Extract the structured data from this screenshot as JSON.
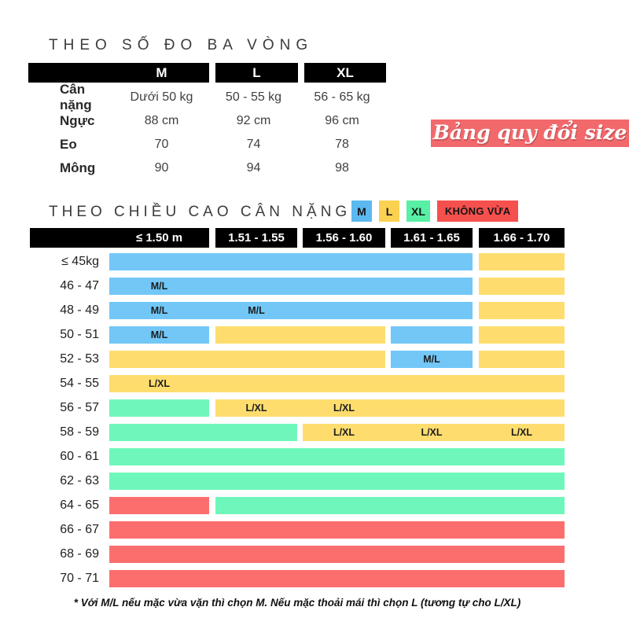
{
  "badge": {
    "label": "Bảng quy đổi size",
    "bg_color": "#f2696c"
  },
  "measurements": {
    "title": "THEO SỐ ĐO BA VÒNG",
    "size_columns": [
      "M",
      "L",
      "XL"
    ],
    "rows": [
      {
        "label": "Cân nặng",
        "values": [
          "Dưới 50 kg",
          "50 - 55 kg",
          "56 - 65 kg"
        ]
      },
      {
        "label": "Ngực",
        "values": [
          "88 cm",
          "92 cm",
          "96 cm"
        ]
      },
      {
        "label": "Eo",
        "values": [
          "70",
          "74",
          "78"
        ]
      },
      {
        "label": "Mông",
        "values": [
          "90",
          "94",
          "98"
        ]
      }
    ]
  },
  "height_weight": {
    "title": "THEO CHIỀU CAO CÂN NẶNG",
    "legend": [
      {
        "label": "M",
        "color": "#5bb9f0"
      },
      {
        "label": "L",
        "color": "#fbd152"
      },
      {
        "label": "XL",
        "color": "#57f0a5"
      },
      {
        "label": "KHÔNG VỪA",
        "color": "#f6504e"
      }
    ],
    "size_colors": {
      "M": "#72c7f7",
      "L": "#fedd6e",
      "XL": "#6ff7bb",
      "NONE": "#fc6e6e"
    },
    "height_columns": [
      "≤ 1.50 m",
      "1.51 - 1.55",
      "1.56 - 1.60",
      "1.61 - 1.65",
      "1.66 - 1.70"
    ],
    "weight_rows": [
      {
        "label": "≤ 45kg",
        "segments": [
          {
            "from": 1,
            "to": 4,
            "size": "M"
          },
          {
            "from": 5,
            "to": 5,
            "size": "L"
          }
        ]
      },
      {
        "label": "46 - 47",
        "segments": [
          {
            "from": 1,
            "to": 4,
            "size": "M",
            "labels": [
              {
                "col": 1,
                "text": "M/L"
              }
            ]
          },
          {
            "from": 5,
            "to": 5,
            "size": "L"
          }
        ]
      },
      {
        "label": "48 - 49",
        "segments": [
          {
            "from": 1,
            "to": 4,
            "size": "M",
            "labels": [
              {
                "col": 1,
                "text": "M/L"
              },
              {
                "col": 2,
                "text": "M/L"
              }
            ]
          },
          {
            "from": 5,
            "to": 5,
            "size": "L"
          }
        ]
      },
      {
        "label": "50 - 51",
        "segments": [
          {
            "from": 1,
            "to": 1,
            "size": "M",
            "labels": [
              {
                "col": 1,
                "text": "M/L"
              }
            ]
          },
          {
            "from": 2,
            "to": 3,
            "size": "L"
          },
          {
            "from": 4,
            "to": 4,
            "size": "M"
          },
          {
            "from": 5,
            "to": 5,
            "size": "L"
          }
        ]
      },
      {
        "label": "52 - 53",
        "segments": [
          {
            "from": 1,
            "to": 3,
            "size": "L"
          },
          {
            "from": 4,
            "to": 4,
            "size": "M",
            "labels": [
              {
                "col": 4,
                "text": "M/L"
              }
            ]
          },
          {
            "from": 5,
            "to": 5,
            "size": "L"
          }
        ]
      },
      {
        "label": "54 - 55",
        "segments": [
          {
            "from": 1,
            "to": 5,
            "size": "L",
            "labels": [
              {
                "col": 1,
                "text": "L/XL"
              }
            ]
          }
        ]
      },
      {
        "label": "56 - 57",
        "segments": [
          {
            "from": 1,
            "to": 1,
            "size": "XL"
          },
          {
            "from": 2,
            "to": 5,
            "size": "L",
            "labels": [
              {
                "col": 2,
                "text": "L/XL"
              },
              {
                "col": 3,
                "text": "L/XL"
              }
            ]
          }
        ]
      },
      {
        "label": "58 - 59",
        "segments": [
          {
            "from": 1,
            "to": 2,
            "size": "XL"
          },
          {
            "from": 3,
            "to": 5,
            "size": "L",
            "labels": [
              {
                "col": 3,
                "text": "L/XL"
              },
              {
                "col": 4,
                "text": "L/XL"
              },
              {
                "col": 5,
                "text": "L/XL"
              }
            ]
          }
        ]
      },
      {
        "label": "60 - 61",
        "segments": [
          {
            "from": 1,
            "to": 5,
            "size": "XL"
          }
        ]
      },
      {
        "label": "62 - 63",
        "segments": [
          {
            "from": 1,
            "to": 5,
            "size": "XL"
          }
        ]
      },
      {
        "label": "64 - 65",
        "segments": [
          {
            "from": 1,
            "to": 1,
            "size": "NONE"
          },
          {
            "from": 2,
            "to": 5,
            "size": "XL"
          }
        ]
      },
      {
        "label": "66 - 67",
        "segments": [
          {
            "from": 1,
            "to": 5,
            "size": "NONE"
          }
        ]
      },
      {
        "label": "68 - 69",
        "segments": [
          {
            "from": 1,
            "to": 5,
            "size": "NONE"
          }
        ]
      },
      {
        "label": "70 - 71",
        "segments": [
          {
            "from": 1,
            "to": 5,
            "size": "NONE"
          }
        ]
      }
    ],
    "footnote": "* Với M/L nếu mặc vừa vặn thì chọn M. Nếu mặc thoải mái thì chọn L (tương tự cho L/XL)"
  },
  "chart_data": [
    {
      "type": "table",
      "title": "THEO SỐ ĐO BA VÒNG",
      "columns": [
        "",
        "M",
        "L",
        "XL"
      ],
      "rows": [
        [
          "Cân nặng",
          "Dưới 50 kg",
          "50 - 55 kg",
          "56 - 65 kg"
        ],
        [
          "Ngực",
          "88 cm",
          "92 cm",
          "96 cm"
        ],
        [
          "Eo",
          "70",
          "74",
          "78"
        ],
        [
          "Mông",
          "90",
          "94",
          "98"
        ]
      ]
    },
    {
      "type": "heatmap",
      "title": "THEO CHIỀU CAO CÂN NẶNG",
      "x_categories": [
        "≤ 1.50 m",
        "1.51 - 1.55",
        "1.56 - 1.60",
        "1.61 - 1.65",
        "1.66 - 1.70"
      ],
      "y_categories": [
        "≤ 45kg",
        "46 - 47",
        "48 - 49",
        "50 - 51",
        "52 - 53",
        "54 - 55",
        "56 - 57",
        "58 - 59",
        "60 - 61",
        "62 - 63",
        "64 - 65",
        "66 - 67",
        "68 - 69",
        "70 - 71"
      ],
      "legend_entries": [
        "M",
        "L",
        "XL",
        "KHÔNG VỪA"
      ],
      "legend_position": "top-right",
      "grid": false,
      "cells": [
        [
          "M",
          "M",
          "M",
          "M",
          "L"
        ],
        [
          "M/L",
          "M",
          "M",
          "M",
          "L"
        ],
        [
          "M/L",
          "M/L",
          "M",
          "M",
          "L"
        ],
        [
          "M/L",
          "L",
          "L",
          "M",
          "L"
        ],
        [
          "L",
          "L",
          "L",
          "M/L",
          "L"
        ],
        [
          "L/XL",
          "L",
          "L",
          "L",
          "L"
        ],
        [
          "XL",
          "L/XL",
          "L/XL",
          "L",
          "L"
        ],
        [
          "XL",
          "XL",
          "L/XL",
          "L/XL",
          "L/XL"
        ],
        [
          "XL",
          "XL",
          "XL",
          "XL",
          "XL"
        ],
        [
          "XL",
          "XL",
          "XL",
          "XL",
          "XL"
        ],
        [
          "KHÔNG VỪA",
          "XL",
          "XL",
          "XL",
          "XL"
        ],
        [
          "KHÔNG VỪA",
          "KHÔNG VỪA",
          "KHÔNG VỪA",
          "KHÔNG VỪA",
          "KHÔNG VỪA"
        ],
        [
          "KHÔNG VỪA",
          "KHÔNG VỪA",
          "KHÔNG VỪA",
          "KHÔNG VỪA",
          "KHÔNG VỪA"
        ],
        [
          "KHÔNG VỪA",
          "KHÔNG VỪA",
          "KHÔNG VỪA",
          "KHÔNG VỪA",
          "KHÔNG VỪA"
        ]
      ],
      "annotation": "* Với M/L nếu mặc vừa vặn thì chọn M. Nếu mặc thoải mái thì chọn L (tương tự cho L/XL)"
    }
  ]
}
